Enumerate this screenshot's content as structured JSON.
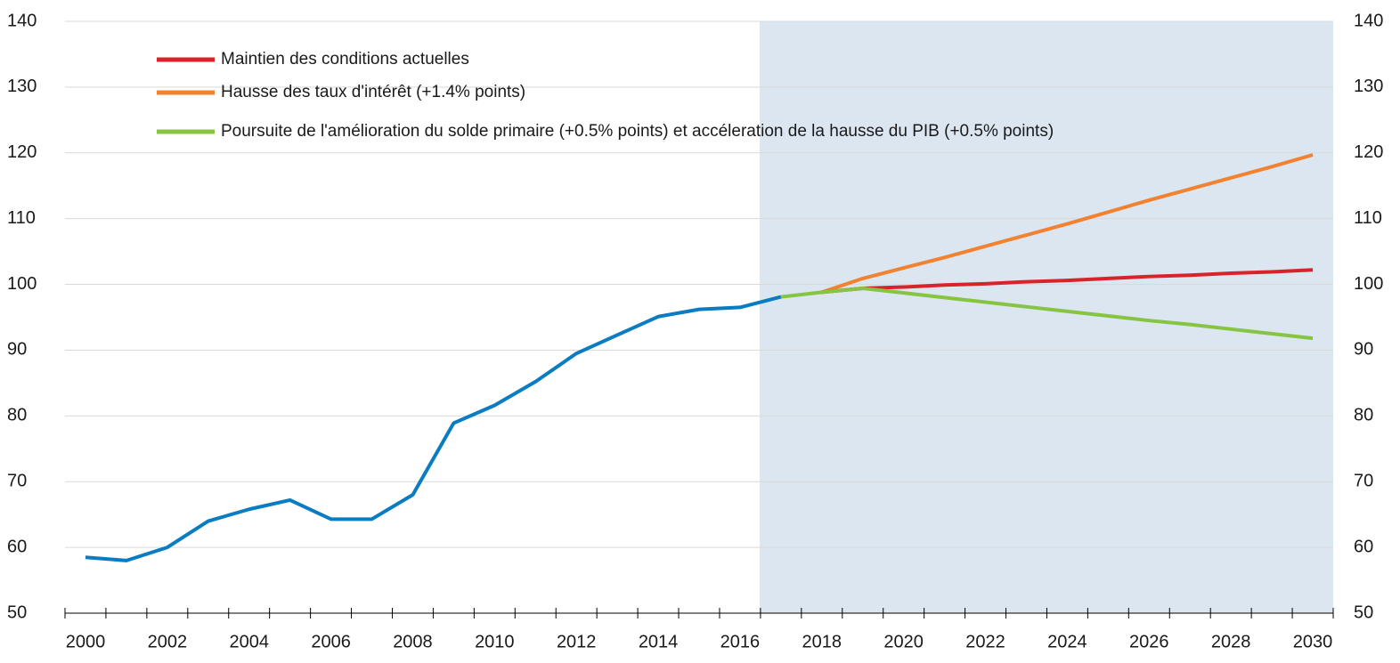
{
  "chart_data": {
    "type": "line",
    "categories": [
      "2000",
      null,
      "2002",
      null,
      "2004",
      null,
      "2006",
      null,
      "2008",
      null,
      "2010",
      null,
      "2012",
      null,
      "2014",
      null,
      "2016",
      null,
      "2018",
      null,
      "2020",
      null,
      "2022",
      null,
      "2024",
      null,
      "2026",
      null,
      "2028",
      null,
      "2030"
    ],
    "series": [
      {
        "color": "#0a7cc1",
        "values": [
          58.5,
          58.0,
          60.0,
          64.0,
          65.8,
          67.2,
          64.3,
          64.3,
          68.0,
          78.9,
          81.6,
          85.2,
          89.5,
          92.3,
          95.1,
          96.2,
          96.5,
          98.1,
          null,
          null,
          null,
          null,
          null,
          null,
          null,
          null,
          null,
          null,
          null,
          null,
          null
        ]
      },
      {
        "name": "Hausse des taux d'intérêt (+1.4% points)",
        "color": "#f28230",
        "values": [
          null,
          null,
          null,
          null,
          null,
          null,
          null,
          null,
          null,
          null,
          null,
          null,
          null,
          null,
          null,
          null,
          null,
          null,
          98.8,
          100.9,
          102.5,
          104.1,
          105.8,
          107.5,
          109.2,
          111.0,
          112.8,
          114.5,
          116.2,
          117.9,
          119.7
        ]
      },
      {
        "name": "Maintien des conditions actuelles",
        "color": "#d9232a",
        "values": [
          null,
          null,
          null,
          null,
          null,
          null,
          null,
          null,
          null,
          null,
          null,
          null,
          null,
          null,
          null,
          null,
          null,
          null,
          98.8,
          99.4,
          99.6,
          99.9,
          100.1,
          100.4,
          100.6,
          100.9,
          101.2,
          101.4,
          101.7,
          101.9,
          102.2
        ]
      },
      {
        "name": "Poursuite de l'amélioration du solde primaire (+0.5% points) et accéleration de la hausse du PIB (+0.5% points)",
        "color": "#86c441",
        "values": [
          null,
          null,
          null,
          null,
          null,
          null,
          null,
          null,
          null,
          null,
          null,
          null,
          null,
          null,
          null,
          null,
          null,
          98.1,
          98.8,
          99.4,
          98.7,
          98.0,
          97.3,
          96.6,
          95.9,
          95.2,
          94.5,
          93.9,
          93.2,
          92.5,
          91.8
        ]
      }
    ],
    "legend_order": [
      2,
      1,
      3
    ],
    "ylim": [
      50,
      140
    ],
    "yticks": [
      50,
      60,
      70,
      80,
      90,
      100,
      110,
      120,
      130,
      140
    ],
    "y2lim": [
      50,
      140
    ],
    "y2ticks": [
      50,
      60,
      70,
      80,
      90,
      100,
      110,
      120,
      130,
      140
    ],
    "grid": true
  }
}
